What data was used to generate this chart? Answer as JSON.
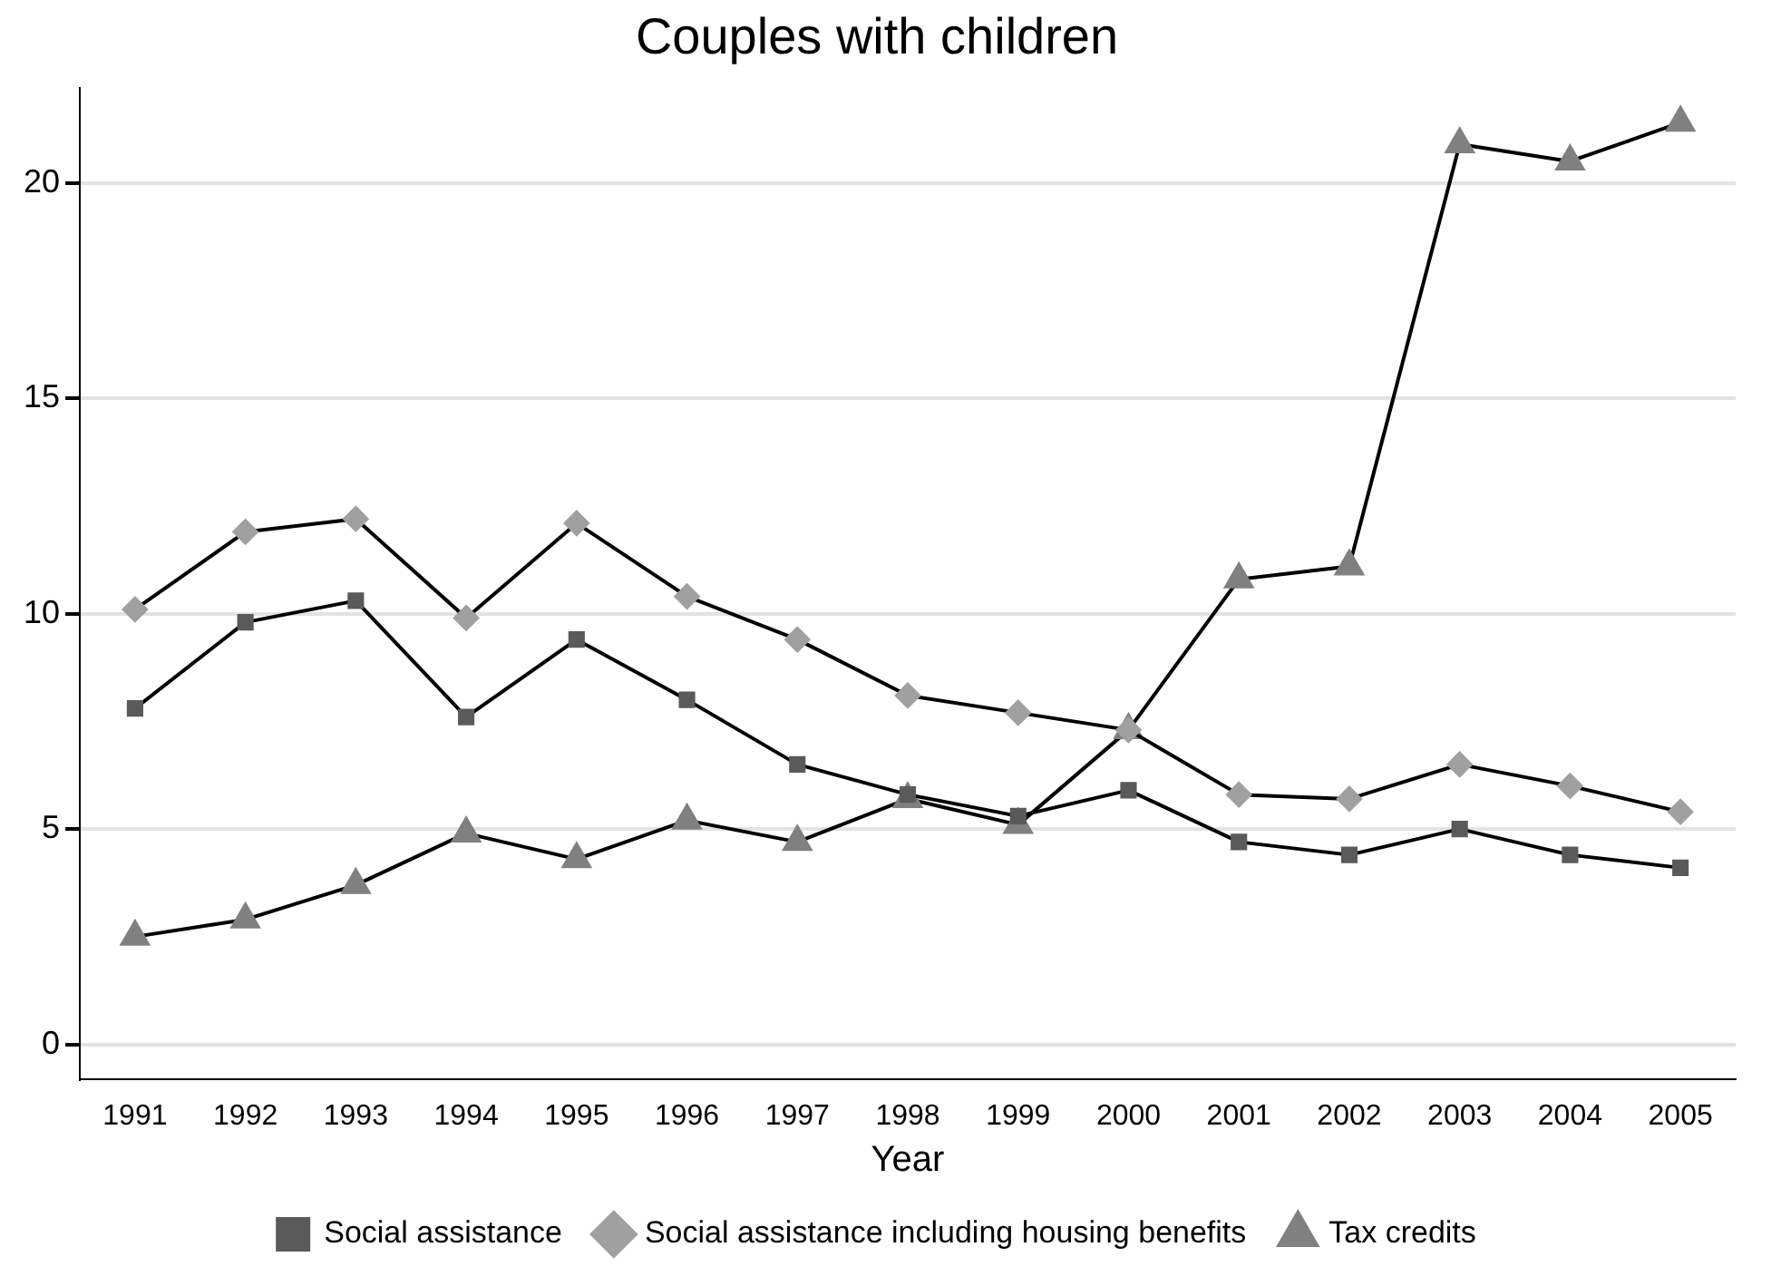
{
  "chart_data": {
    "type": "line",
    "title": "Couples with children",
    "xlabel": "Year",
    "categories": [
      "1991",
      "1992",
      "1993",
      "1994",
      "1995",
      "1996",
      "1997",
      "1998",
      "1999",
      "2000",
      "2001",
      "2002",
      "2003",
      "2004",
      "2005"
    ],
    "series": [
      {
        "name": "Social assistance",
        "color": "#5a5a5a",
        "marker": "square",
        "values": [
          7.8,
          9.8,
          10.3,
          7.6,
          9.4,
          8.0,
          6.5,
          5.8,
          5.3,
          5.9,
          4.7,
          4.4,
          5.0,
          4.4,
          4.1
        ]
      },
      {
        "name": "Social assistance including housing benefits",
        "color": "#a0a0a0",
        "marker": "diamond",
        "values": [
          10.1,
          11.9,
          12.2,
          9.9,
          12.1,
          10.4,
          9.4,
          8.1,
          7.7,
          7.3,
          5.8,
          5.7,
          6.5,
          6.0,
          5.4
        ]
      },
      {
        "name": "Tax credits",
        "color": "#808080",
        "marker": "triangle",
        "values": [
          2.5,
          2.9,
          3.7,
          4.9,
          4.3,
          5.2,
          4.7,
          5.7,
          5.1,
          7.3,
          10.8,
          11.1,
          20.9,
          20.5,
          21.4
        ]
      }
    ],
    "ylim": [
      -0.8,
      22.2
    ],
    "yticks": [
      0,
      5,
      10,
      15,
      20
    ],
    "grid": "y",
    "legend": "bottom"
  }
}
